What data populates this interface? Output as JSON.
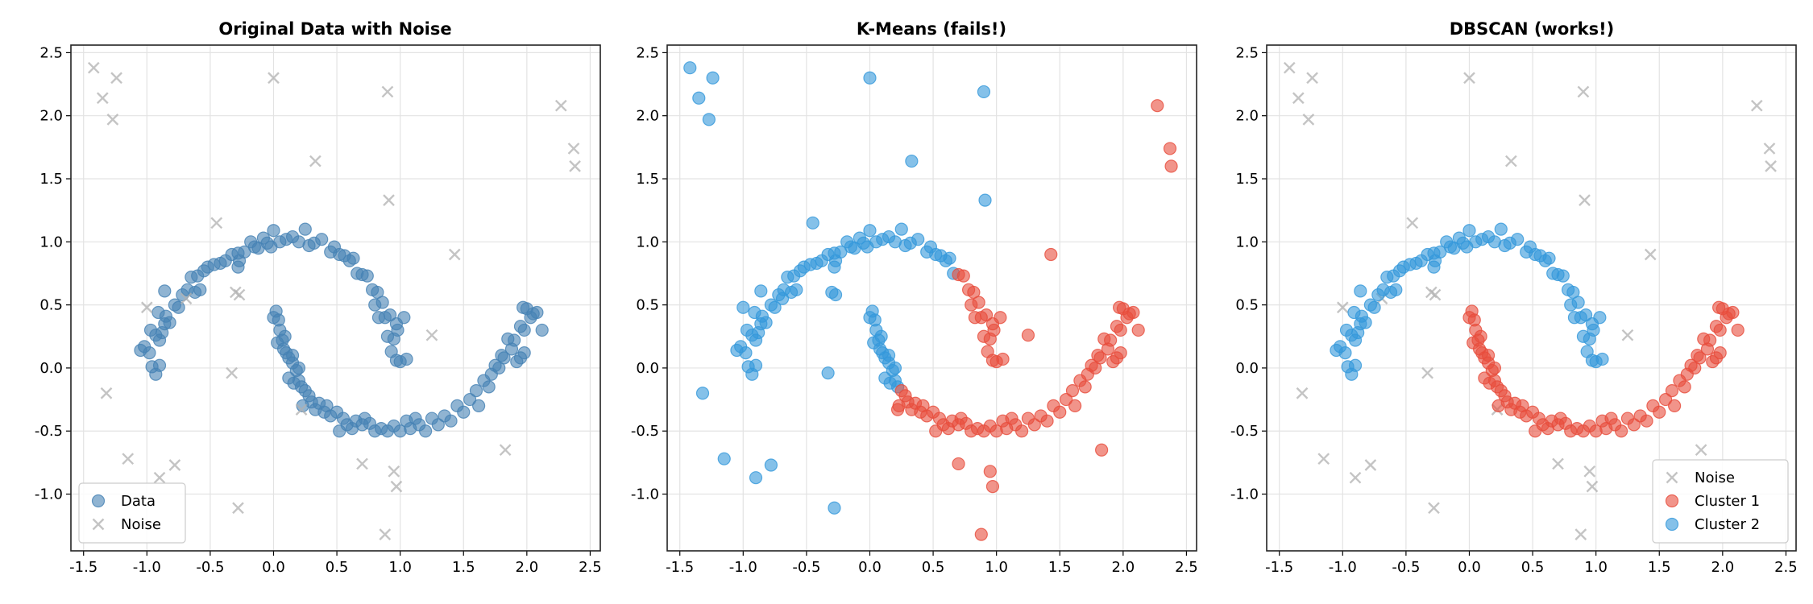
{
  "chart_data": {
    "type": "scatter",
    "xlim": [
      -1.6,
      2.58
    ],
    "ylim": [
      -1.45,
      2.56
    ],
    "xticks": [
      "-1.5",
      "-1.0",
      "-0.5",
      "0.0",
      "0.5",
      "1.0",
      "1.5",
      "2.0",
      "2.5"
    ],
    "yticks": [
      "-1.0",
      "-0.5",
      "0.0",
      "0.5",
      "1.0",
      "1.5",
      "2.0",
      "2.5"
    ],
    "grid": true,
    "colors": {
      "data": "#4682b4",
      "noise": "#b0b0b0",
      "kmeans_a": "#3498db",
      "kmeans_b": "#e74c3c",
      "cluster1": "#e74c3c",
      "cluster2": "#3498db"
    },
    "points": {
      "upper_moon_kmeans_a": [
        [
          -1.05,
          0.14
        ],
        [
          -1.02,
          0.17
        ],
        [
          -0.98,
          0.12
        ],
        [
          -0.96,
          0.01
        ],
        [
          -0.93,
          -0.05
        ],
        [
          -0.9,
          0.02
        ],
        [
          -0.97,
          0.3
        ],
        [
          -0.93,
          0.26
        ],
        [
          -0.9,
          0.22
        ],
        [
          -0.88,
          0.28
        ],
        [
          -0.86,
          0.35
        ],
        [
          -0.91,
          0.44
        ],
        [
          -0.85,
          0.41
        ],
        [
          -0.82,
          0.36
        ],
        [
          -0.86,
          0.61
        ],
        [
          -0.78,
          0.5
        ],
        [
          -0.75,
          0.48
        ],
        [
          -0.72,
          0.58
        ],
        [
          -0.68,
          0.62
        ],
        [
          -0.62,
          0.6
        ],
        [
          -0.58,
          0.62
        ],
        [
          -0.65,
          0.72
        ],
        [
          -0.6,
          0.73
        ],
        [
          -0.55,
          0.77
        ],
        [
          -0.52,
          0.8
        ],
        [
          -0.47,
          0.82
        ],
        [
          -0.42,
          0.83
        ],
        [
          -0.38,
          0.85
        ],
        [
          -0.33,
          0.9
        ],
        [
          -0.28,
          0.91
        ],
        [
          -0.23,
          0.92
        ],
        [
          -0.28,
          0.8
        ],
        [
          -0.27,
          0.85
        ],
        [
          -0.18,
          1.0
        ],
        [
          -0.15,
          0.96
        ],
        [
          -0.12,
          0.95
        ],
        [
          -0.08,
          1.03
        ],
        [
          -0.05,
          0.99
        ],
        [
          0.0,
          1.09
        ],
        [
          0.05,
          1.0
        ],
        [
          -0.02,
          0.96
        ],
        [
          0.1,
          1.02
        ],
        [
          0.15,
          1.04
        ],
        [
          0.2,
          1.0
        ],
        [
          0.25,
          1.1
        ],
        [
          0.28,
          0.97
        ],
        [
          0.32,
          0.99
        ],
        [
          0.38,
          1.02
        ],
        [
          0.45,
          0.92
        ],
        [
          0.48,
          0.96
        ],
        [
          0.52,
          0.9
        ],
        [
          0.56,
          0.89
        ],
        [
          0.6,
          0.85
        ],
        [
          0.63,
          0.87
        ],
        [
          0.66,
          0.75
        ]
      ],
      "upper_moon_kmeans_b": [
        [
          0.7,
          0.74
        ],
        [
          0.74,
          0.73
        ],
        [
          0.78,
          0.62
        ],
        [
          0.82,
          0.6
        ],
        [
          0.8,
          0.5
        ],
        [
          0.86,
          0.52
        ],
        [
          0.88,
          0.4
        ],
        [
          0.92,
          0.42
        ],
        [
          0.83,
          0.4
        ],
        [
          0.9,
          0.25
        ],
        [
          0.95,
          0.23
        ],
        [
          0.98,
          0.3
        ],
        [
          0.93,
          0.13
        ],
        [
          0.97,
          0.06
        ],
        [
          1.0,
          0.05
        ],
        [
          1.05,
          0.07
        ],
        [
          1.03,
          0.4
        ],
        [
          0.97,
          0.35
        ]
      ],
      "lower_moon_kmeans_a": [
        [
          0.02,
          0.45
        ],
        [
          0.0,
          0.4
        ],
        [
          0.04,
          0.38
        ],
        [
          0.05,
          0.3
        ],
        [
          0.07,
          0.22
        ],
        [
          0.03,
          0.2
        ],
        [
          0.09,
          0.25
        ],
        [
          0.08,
          0.15
        ],
        [
          0.1,
          0.12
        ],
        [
          0.12,
          0.08
        ],
        [
          0.15,
          0.04
        ],
        [
          0.15,
          0.1
        ],
        [
          0.18,
          -0.02
        ],
        [
          0.2,
          0.0
        ],
        [
          0.12,
          -0.08
        ],
        [
          0.16,
          -0.12
        ],
        [
          0.2,
          -0.1
        ],
        [
          0.22,
          -0.15
        ]
      ],
      "lower_moon_kmeans_b": [
        [
          0.25,
          -0.18
        ],
        [
          0.23,
          -0.3
        ],
        [
          0.28,
          -0.22
        ],
        [
          0.3,
          -0.27
        ],
        [
          0.33,
          -0.33
        ],
        [
          0.36,
          -0.28
        ],
        [
          0.4,
          -0.35
        ],
        [
          0.42,
          -0.3
        ],
        [
          0.45,
          -0.38
        ],
        [
          0.5,
          -0.35
        ],
        [
          0.55,
          -0.4
        ],
        [
          0.52,
          -0.5
        ],
        [
          0.58,
          -0.45
        ],
        [
          0.62,
          -0.48
        ],
        [
          0.65,
          -0.42
        ],
        [
          0.7,
          -0.45
        ],
        [
          0.72,
          -0.4
        ],
        [
          0.76,
          -0.44
        ],
        [
          0.8,
          -0.5
        ],
        [
          0.85,
          -0.48
        ],
        [
          0.9,
          -0.5
        ],
        [
          0.95,
          -0.46
        ],
        [
          1.0,
          -0.5
        ],
        [
          1.05,
          -0.42
        ],
        [
          1.08,
          -0.48
        ],
        [
          1.12,
          -0.4
        ],
        [
          1.15,
          -0.45
        ],
        [
          1.2,
          -0.5
        ],
        [
          1.25,
          -0.4
        ],
        [
          1.3,
          -0.45
        ],
        [
          1.35,
          -0.38
        ],
        [
          1.4,
          -0.42
        ],
        [
          1.45,
          -0.3
        ],
        [
          1.5,
          -0.35
        ],
        [
          1.55,
          -0.25
        ],
        [
          1.6,
          -0.18
        ],
        [
          1.62,
          -0.3
        ],
        [
          1.66,
          -0.1
        ],
        [
          1.7,
          -0.15
        ],
        [
          1.72,
          -0.05
        ],
        [
          1.75,
          0.02
        ],
        [
          1.78,
          0.0
        ],
        [
          1.8,
          0.1
        ],
        [
          1.82,
          0.08
        ],
        [
          1.85,
          0.23
        ],
        [
          1.9,
          0.22
        ],
        [
          1.88,
          0.15
        ],
        [
          1.92,
          0.05
        ],
        [
          1.95,
          0.33
        ],
        [
          1.98,
          0.3
        ],
        [
          2.0,
          0.47
        ],
        [
          2.03,
          0.4
        ],
        [
          1.97,
          0.48
        ],
        [
          2.05,
          0.43
        ],
        [
          2.08,
          0.44
        ],
        [
          2.12,
          0.3
        ],
        [
          1.98,
          0.12
        ],
        [
          1.95,
          0.08
        ]
      ],
      "noise_kmeans_a": [
        [
          -1.42,
          2.38
        ],
        [
          -1.35,
          2.14
        ],
        [
          -1.24,
          2.3
        ],
        [
          -1.27,
          1.97
        ],
        [
          0.0,
          2.3
        ],
        [
          0.9,
          2.19
        ],
        [
          0.33,
          1.64
        ],
        [
          0.91,
          1.33
        ],
        [
          -0.45,
          1.15
        ],
        [
          -0.3,
          0.6
        ],
        [
          -0.27,
          0.58
        ],
        [
          -1.0,
          0.48
        ],
        [
          -0.69,
          0.55
        ],
        [
          -0.33,
          -0.04
        ],
        [
          -1.32,
          -0.2
        ],
        [
          -1.15,
          -0.72
        ],
        [
          -0.78,
          -0.77
        ],
        [
          -0.9,
          -0.87
        ],
        [
          -0.28,
          -1.11
        ]
      ],
      "noise_kmeans_b": [
        [
          2.27,
          2.08
        ],
        [
          2.37,
          1.74
        ],
        [
          2.38,
          1.6
        ],
        [
          1.43,
          0.9
        ],
        [
          1.25,
          0.26
        ],
        [
          0.22,
          -0.33
        ],
        [
          0.7,
          -0.76
        ],
        [
          0.95,
          -0.82
        ],
        [
          0.97,
          -0.94
        ],
        [
          0.88,
          -1.32
        ],
        [
          1.83,
          -0.65
        ]
      ]
    },
    "panels": [
      {
        "title": "Original Data with Noise",
        "legend": {
          "placement": "lower-left",
          "entries": [
            {
              "label": "Data",
              "marker": "circle",
              "color": "#4682b4"
            },
            {
              "label": "Noise",
              "marker": "x",
              "color": "#b0b0b0"
            }
          ]
        }
      },
      {
        "title": "K-Means (fails!)",
        "legend": null
      },
      {
        "title": "DBSCAN (works!)",
        "legend": {
          "placement": "lower-right",
          "entries": [
            {
              "label": "Noise",
              "marker": "x",
              "color": "#b0b0b0"
            },
            {
              "label": "Cluster 1",
              "marker": "circle",
              "color": "#e74c3c"
            },
            {
              "label": "Cluster 2",
              "marker": "circle",
              "color": "#3498db"
            }
          ]
        }
      }
    ]
  }
}
